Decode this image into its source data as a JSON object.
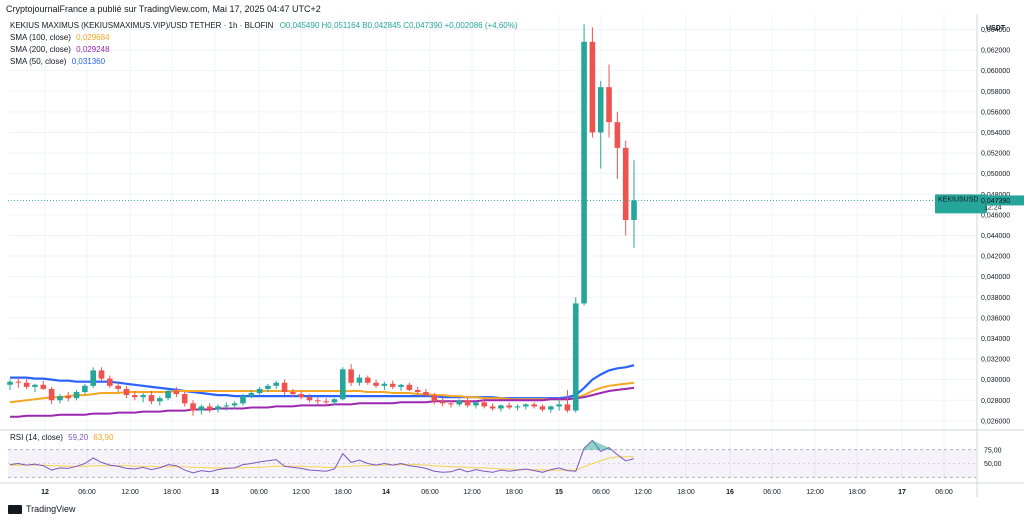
{
  "header": {
    "published": "CryptojournalFrance a publié sur TradingView.com, Mai 17, 2025 04:47 UTC+2"
  },
  "legend": {
    "symbol": "KEKIUS MAXIMUS (KEKIUSMAXIMUS.VIP)/USD TETHER · 1h · BLOFIN",
    "ohlc": "O0,045490 H0,051164 B0,042845 C0,047390 +0,002086 (+4,60%)",
    "sma100_label": "SMA (100, close)",
    "sma100_value": "0,029684",
    "sma200_label": "SMA (200, close)",
    "sma200_value": "0,029248",
    "sma50_label": "SMA (50, close)",
    "sma50_value": "0,031360"
  },
  "rsi": {
    "label": "RSI (14, close)",
    "value1": "59,20",
    "value2": "63,90",
    "levels": [
      "75,00",
      "50,00"
    ]
  },
  "price_axis": {
    "currency": "USDT",
    "ticks": [
      "0,064000",
      "0,062000",
      "0,060000",
      "0,058000",
      "0,056000",
      "0,054000",
      "0,052000",
      "0,050000",
      "0,048000",
      "0,046000",
      "0,044000",
      "0,042000",
      "0,040000",
      "0,038000",
      "0,036000",
      "0,034000",
      "0,032000",
      "0,030000",
      "0,028000",
      "0,026000"
    ],
    "last_symbol": "KEKIUSUSDT",
    "last_price": "0,047390",
    "countdown": "12:24"
  },
  "time_axis": {
    "labels": [
      "12",
      "06:00",
      "12:00",
      "18:00",
      "13",
      "06:00",
      "12:00",
      "18:00",
      "14",
      "06:00",
      "12:00",
      "18:00",
      "15",
      "06:00",
      "12:00",
      "18:00",
      "16",
      "06:00",
      "12:00",
      "18:00",
      "17",
      "06:00"
    ]
  },
  "footer": {
    "brand": "TradingView"
  },
  "colors": {
    "up": "#26a69a",
    "down": "#ef5350",
    "sma50": "#2962ff",
    "sma100": "#f5a623",
    "sma200": "#9c27b0",
    "rsi": "#7e57c2"
  },
  "chart_data": {
    "type": "candlestick",
    "timeframe": "1h",
    "ylim": [
      0.0255,
      0.0655
    ],
    "candles_o_h_l_c": [
      [
        0.0295,
        0.03,
        0.029,
        0.0298
      ],
      [
        0.0298,
        0.0302,
        0.0292,
        0.0297
      ],
      [
        0.0297,
        0.0301,
        0.0291,
        0.0293
      ],
      [
        0.0293,
        0.0296,
        0.0288,
        0.0295
      ],
      [
        0.0295,
        0.0299,
        0.029,
        0.0291
      ],
      [
        0.0291,
        0.0293,
        0.0276,
        0.028
      ],
      [
        0.028,
        0.0286,
        0.0277,
        0.0284
      ],
      [
        0.0284,
        0.0288,
        0.0279,
        0.0282
      ],
      [
        0.0282,
        0.029,
        0.028,
        0.0288
      ],
      [
        0.0288,
        0.0296,
        0.0286,
        0.0294
      ],
      [
        0.0294,
        0.0312,
        0.0292,
        0.0309
      ],
      [
        0.0309,
        0.0312,
        0.0298,
        0.0301
      ],
      [
        0.0301,
        0.0304,
        0.0292,
        0.0294
      ],
      [
        0.0294,
        0.0297,
        0.0288,
        0.0291
      ],
      [
        0.0291,
        0.0294,
        0.0282,
        0.0285
      ],
      [
        0.0285,
        0.0289,
        0.028,
        0.0283
      ],
      [
        0.0283,
        0.0287,
        0.0278,
        0.0285
      ],
      [
        0.0285,
        0.0289,
        0.0276,
        0.0279
      ],
      [
        0.0279,
        0.0284,
        0.0275,
        0.0282
      ],
      [
        0.0282,
        0.0291,
        0.028,
        0.0289
      ],
      [
        0.0289,
        0.0293,
        0.0283,
        0.0286
      ],
      [
        0.0286,
        0.0288,
        0.0274,
        0.0277
      ],
      [
        0.0277,
        0.028,
        0.0265,
        0.027
      ],
      [
        0.027,
        0.0276,
        0.0266,
        0.0274
      ],
      [
        0.0274,
        0.0277,
        0.0268,
        0.0271
      ],
      [
        0.0271,
        0.0276,
        0.0268,
        0.0274
      ],
      [
        0.0274,
        0.0278,
        0.027,
        0.0275
      ],
      [
        0.0275,
        0.0279,
        0.0271,
        0.0277
      ],
      [
        0.0277,
        0.0286,
        0.0275,
        0.0284
      ],
      [
        0.0284,
        0.029,
        0.0282,
        0.0287
      ],
      [
        0.0287,
        0.0293,
        0.0284,
        0.0291
      ],
      [
        0.0291,
        0.0296,
        0.0288,
        0.0294
      ],
      [
        0.0294,
        0.0299,
        0.0291,
        0.0297
      ],
      [
        0.0297,
        0.03,
        0.0285,
        0.0288
      ],
      [
        0.0288,
        0.0291,
        0.0283,
        0.0286
      ],
      [
        0.0286,
        0.0289,
        0.0281,
        0.0283
      ],
      [
        0.0283,
        0.0286,
        0.0278,
        0.028
      ],
      [
        0.028,
        0.0283,
        0.0276,
        0.0279
      ],
      [
        0.0279,
        0.0282,
        0.0275,
        0.0278
      ],
      [
        0.0278,
        0.0282,
        0.0275,
        0.0281
      ],
      [
        0.0281,
        0.0312,
        0.028,
        0.031
      ],
      [
        0.031,
        0.0315,
        0.0294,
        0.0297
      ],
      [
        0.0297,
        0.0305,
        0.0294,
        0.0302
      ],
      [
        0.0302,
        0.0304,
        0.0295,
        0.0297
      ],
      [
        0.0297,
        0.03,
        0.0292,
        0.0294
      ],
      [
        0.0294,
        0.0298,
        0.029,
        0.0296
      ],
      [
        0.0296,
        0.0299,
        0.0291,
        0.0293
      ],
      [
        0.0293,
        0.0296,
        0.0289,
        0.0295
      ],
      [
        0.0295,
        0.0297,
        0.0289,
        0.029
      ],
      [
        0.029,
        0.0293,
        0.0286,
        0.0288
      ],
      [
        0.0288,
        0.0291,
        0.0283,
        0.0285
      ],
      [
        0.0285,
        0.0287,
        0.0276,
        0.0279
      ],
      [
        0.0279,
        0.0282,
        0.0274,
        0.0277
      ],
      [
        0.0277,
        0.028,
        0.0273,
        0.0276
      ],
      [
        0.0276,
        0.0281,
        0.0274,
        0.028
      ],
      [
        0.028,
        0.0282,
        0.0273,
        0.0275
      ],
      [
        0.0275,
        0.0279,
        0.0272,
        0.0278
      ],
      [
        0.0278,
        0.028,
        0.0272,
        0.0274
      ],
      [
        0.0274,
        0.0277,
        0.027,
        0.0272
      ],
      [
        0.0272,
        0.0276,
        0.0269,
        0.0275
      ],
      [
        0.0275,
        0.0278,
        0.0271,
        0.0273
      ],
      [
        0.0273,
        0.0276,
        0.027,
        0.0274
      ],
      [
        0.0274,
        0.0277,
        0.0271,
        0.0276
      ],
      [
        0.0276,
        0.0278,
        0.0272,
        0.0274
      ],
      [
        0.0274,
        0.0276,
        0.0269,
        0.0271
      ],
      [
        0.0271,
        0.0275,
        0.0268,
        0.0274
      ],
      [
        0.0274,
        0.0281,
        0.027,
        0.0276
      ],
      [
        0.0276,
        0.029,
        0.0268,
        0.027
      ],
      [
        0.027,
        0.038,
        0.0268,
        0.0374
      ],
      [
        0.0374,
        0.0645,
        0.0372,
        0.0628
      ],
      [
        0.0628,
        0.0642,
        0.0535,
        0.054
      ],
      [
        0.054,
        0.059,
        0.0505,
        0.0584
      ],
      [
        0.0584,
        0.0606,
        0.0535,
        0.055
      ],
      [
        0.055,
        0.056,
        0.0495,
        0.0525
      ],
      [
        0.0525,
        0.0532,
        0.044,
        0.0455
      ],
      [
        0.0455,
        0.0513,
        0.0428,
        0.0474
      ]
    ],
    "series": [
      {
        "name": "SMA (50, close)",
        "values": [
          0.0302,
          0.0302,
          0.0302,
          0.0301,
          0.0301,
          0.03,
          0.0299,
          0.0299,
          0.0298,
          0.0298,
          0.0298,
          0.0298,
          0.0298,
          0.0297,
          0.0296,
          0.0295,
          0.0294,
          0.0293,
          0.0292,
          0.0291,
          0.029,
          0.0289,
          0.0288,
          0.0287,
          0.0286,
          0.0285,
          0.0285,
          0.0284,
          0.0284,
          0.0284,
          0.0284,
          0.0284,
          0.0284,
          0.0284,
          0.0284,
          0.0284,
          0.0284,
          0.0284,
          0.0284,
          0.0284,
          0.0284,
          0.0284,
          0.0284,
          0.0284,
          0.0284,
          0.0284,
          0.0284,
          0.0284,
          0.0284,
          0.0284,
          0.0284,
          0.0284,
          0.0283,
          0.0283,
          0.0283,
          0.0283,
          0.0283,
          0.0283,
          0.0283,
          0.0282,
          0.0282,
          0.0282,
          0.0282,
          0.0282,
          0.0282,
          0.0282,
          0.0282,
          0.0283,
          0.0285,
          0.0292,
          0.03,
          0.0305,
          0.0309,
          0.0311,
          0.0312,
          0.0314
        ]
      },
      {
        "name": "SMA (100, close)",
        "values": [
          0.0278,
          0.0279,
          0.028,
          0.0281,
          0.0282,
          0.0283,
          0.0283,
          0.0284,
          0.0285,
          0.0285,
          0.0286,
          0.0287,
          0.0287,
          0.0287,
          0.0288,
          0.0288,
          0.0288,
          0.0288,
          0.0288,
          0.0288,
          0.0289,
          0.0289,
          0.0289,
          0.0289,
          0.0289,
          0.0289,
          0.0289,
          0.0289,
          0.0289,
          0.0289,
          0.0289,
          0.0289,
          0.0289,
          0.0289,
          0.0289,
          0.0289,
          0.0289,
          0.0289,
          0.0289,
          0.0289,
          0.0289,
          0.0289,
          0.0289,
          0.0288,
          0.0288,
          0.0288,
          0.0287,
          0.0287,
          0.0287,
          0.0286,
          0.0286,
          0.0285,
          0.0285,
          0.0284,
          0.0284,
          0.0283,
          0.0283,
          0.0282,
          0.0282,
          0.0282,
          0.0281,
          0.0281,
          0.0281,
          0.0281,
          0.0281,
          0.0281,
          0.0281,
          0.0281,
          0.0282,
          0.0285,
          0.0289,
          0.0292,
          0.0294,
          0.0295,
          0.0296,
          0.0297
        ]
      },
      {
        "name": "SMA (200, close)",
        "values": [
          0.0264,
          0.0264,
          0.0265,
          0.0265,
          0.0265,
          0.0265,
          0.0266,
          0.0266,
          0.0266,
          0.0266,
          0.0267,
          0.0267,
          0.0267,
          0.0268,
          0.0268,
          0.0268,
          0.0269,
          0.0269,
          0.0269,
          0.027,
          0.027,
          0.027,
          0.0271,
          0.0271,
          0.0271,
          0.0272,
          0.0272,
          0.0272,
          0.0272,
          0.0273,
          0.0273,
          0.0273,
          0.0274,
          0.0274,
          0.0274,
          0.0275,
          0.0275,
          0.0275,
          0.0275,
          0.0276,
          0.0276,
          0.0276,
          0.0277,
          0.0277,
          0.0277,
          0.0277,
          0.0277,
          0.0278,
          0.0278,
          0.0278,
          0.0278,
          0.0279,
          0.0279,
          0.0279,
          0.0279,
          0.0279,
          0.0279,
          0.028,
          0.028,
          0.028,
          0.028,
          0.028,
          0.028,
          0.028,
          0.028,
          0.0281,
          0.0281,
          0.0281,
          0.0282,
          0.0283,
          0.0285,
          0.0287,
          0.0289,
          0.029,
          0.0291,
          0.0292
        ]
      },
      {
        "name": "RSI (14, close)",
        "values": [
          48,
          50,
          47,
          49,
          46,
          38,
          42,
          41,
          45,
          50,
          60,
          52,
          47,
          45,
          41,
          40,
          43,
          39,
          42,
          48,
          46,
          38,
          33,
          37,
          35,
          39,
          41,
          42,
          48,
          50,
          53,
          55,
          57,
          45,
          43,
          41,
          38,
          37,
          36,
          40,
          68,
          52,
          56,
          50,
          47,
          50,
          47,
          50,
          46,
          44,
          41,
          36,
          34,
          35,
          40,
          35,
          39,
          36,
          34,
          38,
          36,
          38,
          40,
          37,
          34,
          39,
          42,
          37,
          36,
          78,
          92,
          72,
          79,
          66,
          55,
          59
        ]
      },
      {
        "name": "RSI based MA",
        "values": [
          47,
          47,
          47,
          47,
          47,
          46,
          46,
          45,
          45,
          45,
          46,
          46,
          46,
          46,
          46,
          45,
          45,
          45,
          44,
          44,
          44,
          44,
          43,
          43,
          42,
          42,
          42,
          42,
          42,
          43,
          43,
          44,
          45,
          45,
          45,
          45,
          44,
          44,
          43,
          43,
          44,
          45,
          46,
          46,
          47,
          47,
          47,
          48,
          48,
          48,
          47,
          46,
          45,
          44,
          44,
          43,
          42,
          42,
          41,
          40,
          40,
          39,
          39,
          39,
          38,
          38,
          38,
          38,
          38,
          44,
          50,
          55,
          60,
          62,
          62,
          63
        ]
      }
    ]
  }
}
